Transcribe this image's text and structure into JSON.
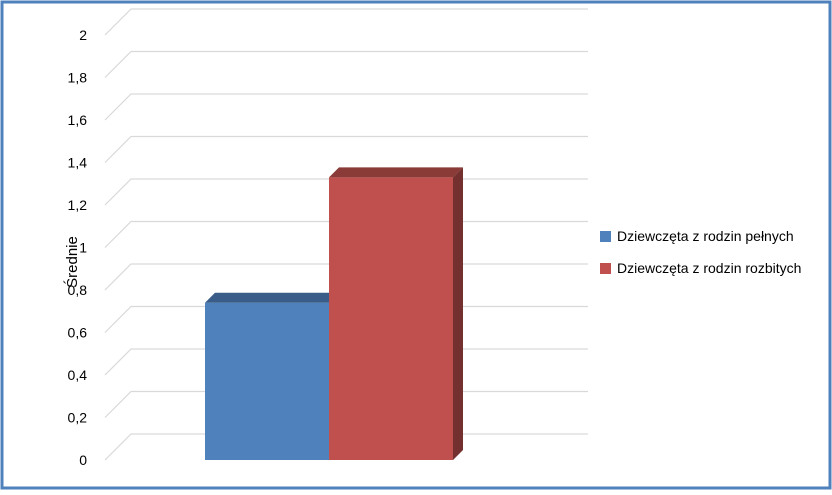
{
  "chart_data": {
    "type": "bar",
    "title": "",
    "xlabel": "",
    "ylabel": "Średnie",
    "ylim": [
      0,
      2
    ],
    "ytick_step": 0.2,
    "yticks": [
      "0",
      "0,2",
      "0,4",
      "0,6",
      "0,8",
      "1",
      "1,2",
      "1,4",
      "1,6",
      "1,8",
      "2"
    ],
    "grid": true,
    "three_d": true,
    "legend_position": "right",
    "series": [
      {
        "name": "Dziewczęta z rodzin pełnych",
        "values": [
          0.74
        ],
        "color": "#4F81BD"
      },
      {
        "name": "Dziewczęta z rodzin rozbitych",
        "values": [
          1.33
        ],
        "color": "#C0504D"
      }
    ]
  },
  "colors": {
    "frame_border": "#4F81BD",
    "gridline": "#D9D9D9",
    "tick_text": "#000000"
  }
}
